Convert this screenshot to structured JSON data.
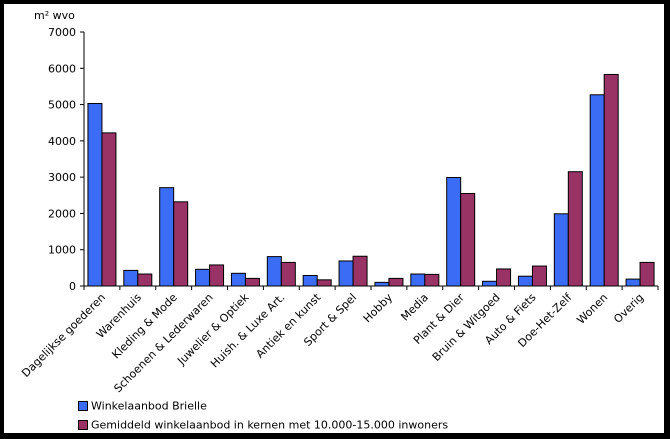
{
  "chart_data": {
    "type": "bar",
    "ylabel": "m² wvo",
    "ylim": [
      0,
      7000
    ],
    "yticks": [
      "0",
      "1000",
      "2000",
      "3000",
      "4000",
      "5000",
      "6000",
      "7000"
    ],
    "grid": false,
    "legend_position": "bottom",
    "categories": [
      "Dagelijkse goederen",
      "Warenhuis",
      "Kleding & Mode",
      "Schoenen & Lederwaren",
      "Juwelier & Optiek",
      "Huish. & Luxe Art.",
      "Antiek en kunst",
      "Sport & Spel",
      "Hobby",
      "Media",
      "Plant & Dier",
      "Bruin & Witgoed",
      "Auto & Fiets",
      "Doe-Het-Zelf",
      "Wonen",
      "Overig"
    ],
    "series": [
      {
        "name": "Winkelaanbod Brielle",
        "color": "#3b6cf5",
        "values": [
          5030,
          430,
          2710,
          460,
          350,
          810,
          290,
          690,
          100,
          330,
          2990,
          130,
          270,
          1990,
          5270,
          190
        ]
      },
      {
        "name": "Gemiddeld winkelaanbod in kernen met 10.000-15.000 inwoners",
        "color": "#993366",
        "values": [
          4220,
          330,
          2320,
          580,
          210,
          650,
          170,
          820,
          210,
          320,
          2550,
          470,
          550,
          3150,
          5830,
          650
        ]
      }
    ]
  }
}
